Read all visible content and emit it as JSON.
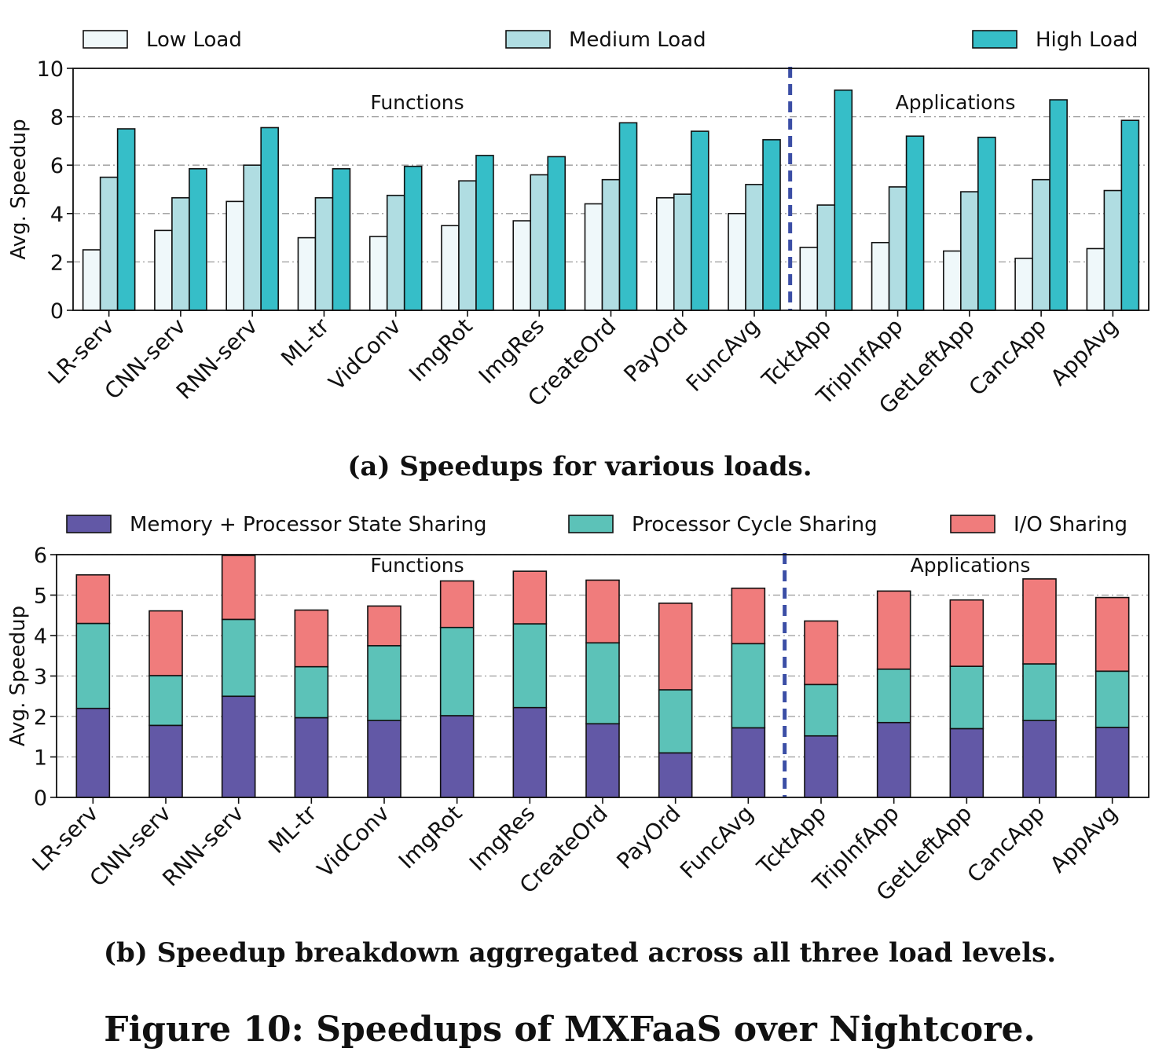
{
  "figure_caption": "Figure 10: Speedups of MXFaaS over Nightcore.",
  "chart_data": [
    {
      "type": "bar",
      "caption": "(a) Speedups for various loads.",
      "ylabel": "Avg. Speedup",
      "ylim": [
        0,
        10
      ],
      "yticks": [
        0,
        2,
        4,
        6,
        8,
        10
      ],
      "grid": true,
      "legend_position": "top",
      "region_labels": [
        "Functions",
        "Applications"
      ],
      "divider_after_index": 9,
      "categories": [
        "LR-serv",
        "CNN-serv",
        "RNN-serv",
        "ML-tr",
        "VidConv",
        "ImgRot",
        "ImgRes",
        "CreateOrd",
        "PayOrd",
        "FuncAvg",
        "TcktApp",
        "TripInfApp",
        "GetLeftApp",
        "CancApp",
        "AppAvg"
      ],
      "series": [
        {
          "name": "Low Load",
          "color": "#eff8fa",
          "values": [
            2.5,
            3.3,
            4.5,
            3.0,
            3.05,
            3.5,
            3.7,
            4.4,
            4.65,
            4.0,
            2.6,
            2.8,
            2.45,
            2.15,
            2.55
          ]
        },
        {
          "name": "Medium Load",
          "color": "#b0dde2",
          "values": [
            5.5,
            4.65,
            6.0,
            4.65,
            4.75,
            5.35,
            5.6,
            5.4,
            4.8,
            5.2,
            4.35,
            5.1,
            4.9,
            5.4,
            4.95
          ]
        },
        {
          "name": "High Load",
          "color": "#36bec8",
          "values": [
            7.5,
            5.85,
            7.55,
            5.85,
            5.95,
            6.4,
            6.35,
            7.75,
            7.4,
            7.05,
            9.1,
            7.2,
            7.15,
            8.7,
            7.85
          ]
        }
      ]
    },
    {
      "type": "bar",
      "stacked": true,
      "caption": "(b) Speedup breakdown aggregated across all three load levels.",
      "ylabel": "Avg. Speedup",
      "ylim": [
        0,
        6
      ],
      "yticks": [
        0,
        1,
        2,
        3,
        4,
        5,
        6
      ],
      "grid": true,
      "legend_position": "top",
      "region_labels": [
        "Functions",
        "Applications"
      ],
      "divider_after_index": 9,
      "categories": [
        "LR-serv",
        "CNN-serv",
        "RNN-serv",
        "ML-tr",
        "VidConv",
        "ImgRot",
        "ImgRes",
        "CreateOrd",
        "PayOrd",
        "FuncAvg",
        "TcktApp",
        "TripInfApp",
        "GetLeftApp",
        "CancApp",
        "AppAvg"
      ],
      "series": [
        {
          "name": "Memory + Processor State Sharing",
          "color": "#6258a6",
          "values": [
            2.2,
            1.78,
            2.5,
            1.97,
            1.9,
            2.02,
            2.22,
            1.82,
            1.1,
            1.72,
            1.52,
            1.85,
            1.7,
            1.9,
            1.73
          ]
        },
        {
          "name": "Processor Cycle Sharing",
          "color": "#5cc2b8",
          "values": [
            2.1,
            1.23,
            1.9,
            1.26,
            1.85,
            2.18,
            2.07,
            2.0,
            1.56,
            2.08,
            1.27,
            1.32,
            1.54,
            1.4,
            1.39
          ]
        },
        {
          "name": "I/O Sharing",
          "color": "#f07c7c",
          "values": [
            1.2,
            1.6,
            1.58,
            1.4,
            0.98,
            1.15,
            1.3,
            1.55,
            2.14,
            1.37,
            1.57,
            1.93,
            1.64,
            2.1,
            1.82
          ]
        }
      ]
    }
  ]
}
